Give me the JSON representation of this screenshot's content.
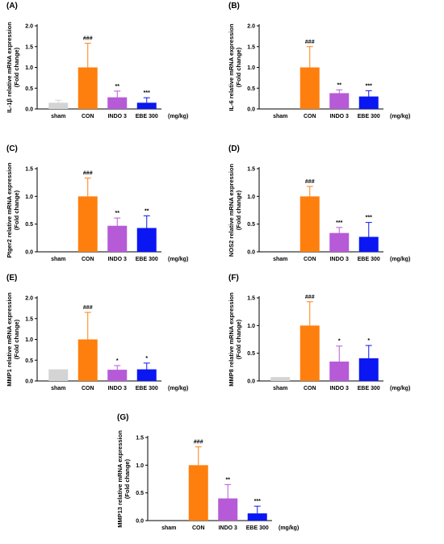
{
  "unit_label": "(mg/kg)",
  "colors": {
    "sham": "#d4d4d4",
    "CON": "#ff7f0e",
    "INDO 3": "#b65ad8",
    "EBE 300": "#0a17f2",
    "error_bar": "#000000"
  },
  "chart_data": [
    {
      "type": "bar",
      "panel": "(A)",
      "ylabel": [
        "IL-1β relative mRNA expression",
        "(Fold change)"
      ],
      "categories": [
        "sham",
        "CON",
        "INDO 3",
        "EBE 300"
      ],
      "values": [
        0.15,
        1.0,
        0.28,
        0.15
      ],
      "errors": [
        0.06,
        0.58,
        0.15,
        0.12
      ],
      "significance": [
        "",
        "###",
        "**",
        "***"
      ],
      "ylim": [
        0,
        2.0
      ],
      "yticks": [
        "0.0",
        "0.5",
        "1.0",
        "1.5",
        "2.0"
      ]
    },
    {
      "type": "bar",
      "panel": "(B)",
      "ylabel": [
        "IL-6 relative mRNA expression",
        "(Fold change)"
      ],
      "categories": [
        "sham",
        "CON",
        "INDO 3",
        "EBE 300"
      ],
      "values": [
        0.0,
        1.0,
        0.38,
        0.3
      ],
      "errors": [
        0.0,
        0.5,
        0.08,
        0.14
      ],
      "significance": [
        "",
        "###",
        "**",
        "***"
      ],
      "ylim": [
        0,
        2.0
      ],
      "yticks": [
        "0.0",
        "0.5",
        "1.0",
        "1.5",
        "2.0"
      ]
    },
    {
      "type": "bar",
      "panel": "(C)",
      "ylabel": [
        "Ptger2 relative mRNA expression",
        "(Fold change)"
      ],
      "categories": [
        "sham",
        "CON",
        "INDO 3",
        "EBE 300"
      ],
      "values": [
        0.0,
        1.0,
        0.47,
        0.43
      ],
      "errors": [
        0.0,
        0.33,
        0.14,
        0.22
      ],
      "significance": [
        "",
        "###",
        "**",
        "**"
      ],
      "ylim": [
        0,
        1.5
      ],
      "yticks": [
        "0.0",
        "0.5",
        "1.0",
        "1.5"
      ]
    },
    {
      "type": "bar",
      "panel": "(D)",
      "ylabel": [
        "NOS2 relative mRNA expression",
        "(Fold change)"
      ],
      "categories": [
        "sham",
        "CON",
        "INDO 3",
        "EBE 300"
      ],
      "values": [
        0.0,
        1.0,
        0.34,
        0.27
      ],
      "errors": [
        0.0,
        0.18,
        0.1,
        0.26
      ],
      "significance": [
        "",
        "###",
        "***",
        "***"
      ],
      "ylim": [
        0,
        1.5
      ],
      "yticks": [
        "0.0",
        "0.5",
        "1.0",
        "1.5"
      ]
    },
    {
      "type": "bar",
      "panel": "(E)",
      "ylabel": [
        "MMP1 relative mRNA expression",
        "(Fold change)"
      ],
      "categories": [
        "sham",
        "CON",
        "INDO 3",
        "EBE 300"
      ],
      "values": [
        0.28,
        1.0,
        0.27,
        0.28
      ],
      "errors": [
        0.0,
        0.65,
        0.1,
        0.15
      ],
      "significance": [
        "",
        "###",
        "*",
        "*"
      ],
      "ylim": [
        0,
        2.0
      ],
      "yticks": [
        "0.0",
        "0.5",
        "1.0",
        "1.5",
        "2.0"
      ]
    },
    {
      "type": "bar",
      "panel": "(F)",
      "ylabel": [
        "MMP8 relative mRNA expression",
        "(Fold change)"
      ],
      "categories": [
        "sham",
        "CON",
        "INDO 3",
        "EBE 300"
      ],
      "values": [
        0.07,
        1.0,
        0.35,
        0.41
      ],
      "errors": [
        0.0,
        0.43,
        0.28,
        0.23
      ],
      "significance": [
        "",
        "###",
        "*",
        "*"
      ],
      "ylim": [
        0,
        1.5
      ],
      "yticks": [
        "0.0",
        "0.5",
        "1.0",
        "1.5"
      ]
    },
    {
      "type": "bar",
      "panel": "(G)",
      "ylabel": [
        "MMP13 relative mRNA expression",
        "(Fold change)"
      ],
      "categories": [
        "sham",
        "CON",
        "INDO 3",
        "EBE 300"
      ],
      "values": [
        0.0,
        1.0,
        0.4,
        0.13
      ],
      "errors": [
        0.0,
        0.33,
        0.25,
        0.13
      ],
      "significance": [
        "",
        "###",
        "**",
        "***"
      ],
      "ylim": [
        0,
        1.5
      ],
      "yticks": [
        "0.0",
        "0.5",
        "1.0",
        "1.5"
      ]
    }
  ]
}
